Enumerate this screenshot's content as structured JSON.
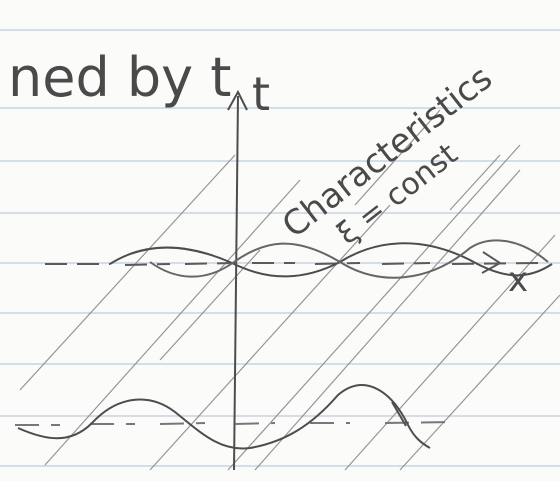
{
  "note": {
    "heading_fragment": "ned by t",
    "axis_time_label": "t",
    "axis_space_label": "x",
    "annotation_line1": "Characteristics",
    "annotation_line2": "ξ = const"
  },
  "colors": {
    "paper": "#fbfbf9",
    "ruled_line": "#c7d4df",
    "pencil": "#4d4d4d",
    "faint_pencil": "#8b8b8b"
  }
}
